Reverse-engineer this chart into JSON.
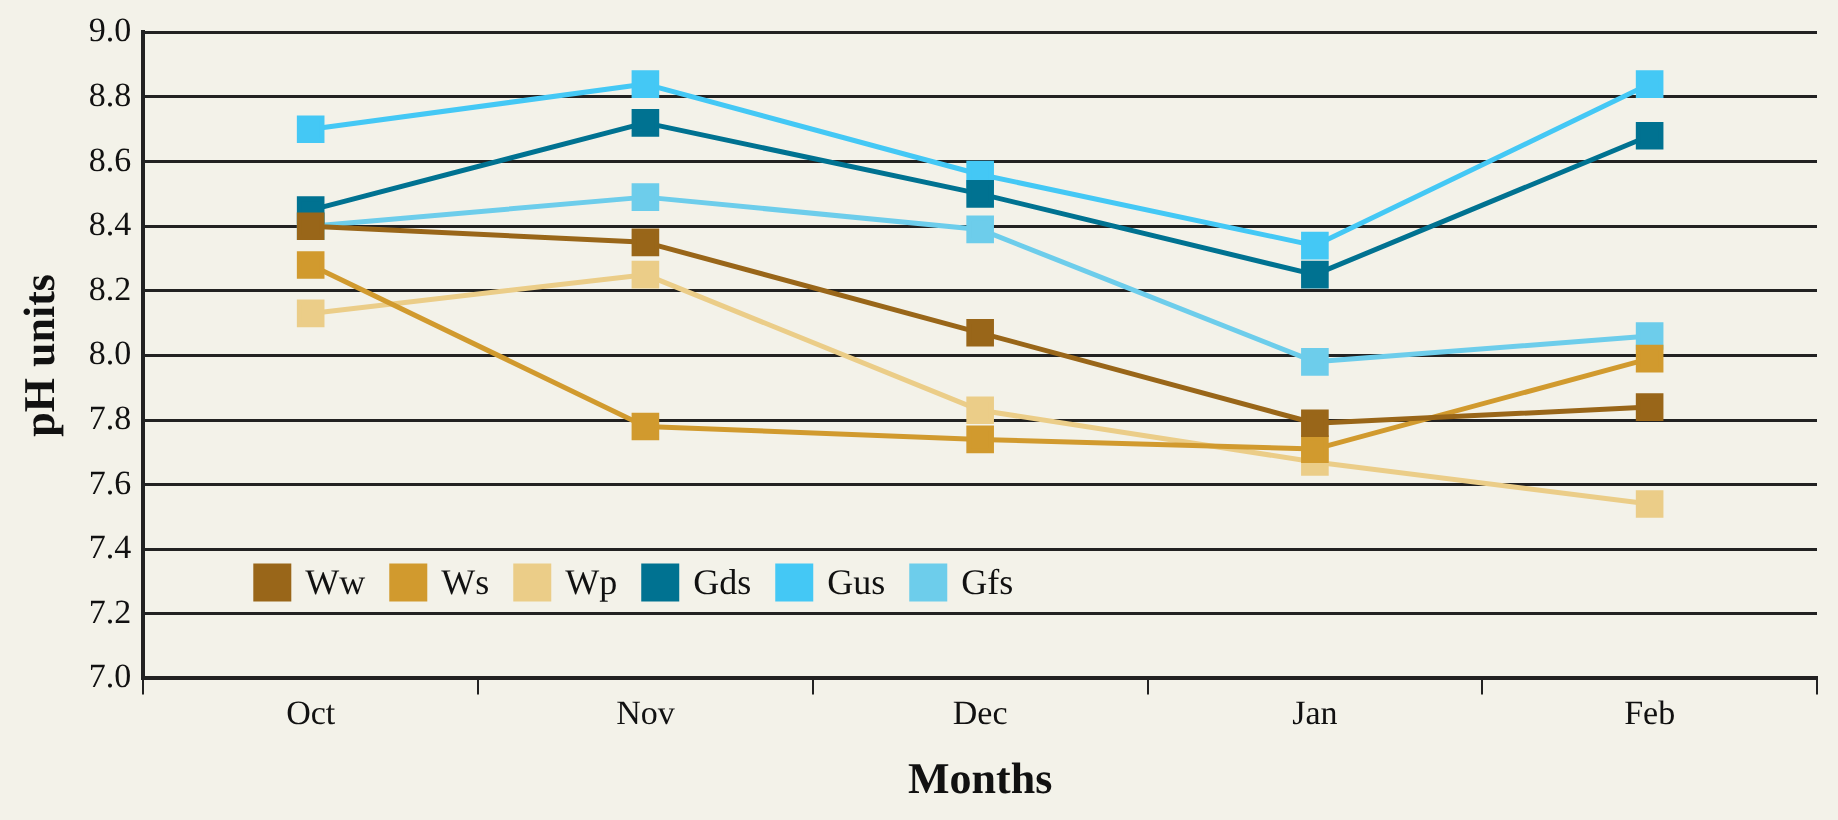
{
  "chart_data": {
    "type": "line",
    "xlabel": "Months",
    "ylabel": "pH units",
    "categories": [
      "Oct",
      "Nov",
      "Dec",
      "Jan",
      "Feb"
    ],
    "series": [
      {
        "name": "Ww",
        "color": "#996619",
        "values": [
          8.4,
          8.35,
          8.07,
          7.79,
          7.84
        ]
      },
      {
        "name": "Ws",
        "color": "#d19a2e",
        "values": [
          8.28,
          7.78,
          7.74,
          7.71,
          7.99
        ]
      },
      {
        "name": "Wp",
        "color": "#ebcd88",
        "values": [
          8.13,
          8.25,
          7.83,
          7.67,
          7.54
        ]
      },
      {
        "name": "Gds",
        "color": "#007291",
        "values": [
          8.45,
          8.72,
          8.5,
          8.25,
          8.68
        ]
      },
      {
        "name": "Gus",
        "color": "#44c8f5",
        "values": [
          8.7,
          8.84,
          8.56,
          8.34,
          8.84
        ]
      },
      {
        "name": "Gfs",
        "color": "#6dcdeb",
        "values": [
          8.4,
          8.49,
          8.39,
          7.98,
          8.06
        ]
      }
    ],
    "ylim": [
      7,
      9
    ],
    "yticks": [
      {
        "value": 7,
        "label": "7.0"
      },
      {
        "value": 7.2,
        "label": "7.2"
      },
      {
        "value": 7.4,
        "label": "7.4"
      },
      {
        "value": 7.6,
        "label": "7.6"
      },
      {
        "value": 7.8,
        "label": "7.8"
      },
      {
        "value": 8,
        "label": "8.0"
      },
      {
        "value": 8.2,
        "label": "8.2"
      },
      {
        "value": 8.4,
        "label": "8.4"
      },
      {
        "value": 8.6,
        "label": "8.6"
      },
      {
        "value": 8.8,
        "label": "8.8"
      },
      {
        "value": 9,
        "label": "9.0"
      }
    ],
    "grid": "y",
    "legend": "bottom left",
    "marker": "square",
    "line_style": "solid"
  }
}
